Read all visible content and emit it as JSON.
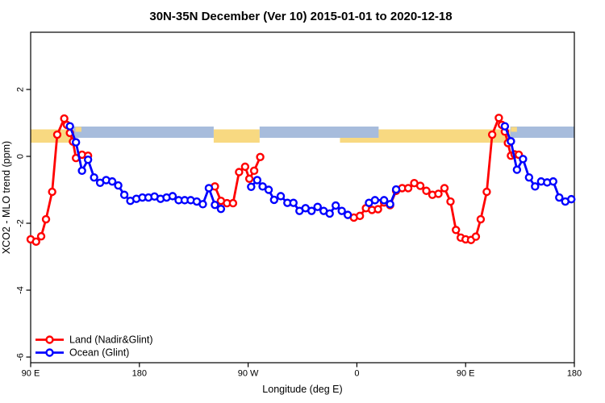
{
  "title": "30N-35N December (Ver 10)   2015-01-01 to 2020-12-18",
  "axes": {
    "x": {
      "label": "Longitude (deg E)",
      "range": [
        90,
        540
      ],
      "ticks": [
        {
          "lon": 90,
          "label": "90 E"
        },
        {
          "lon": 180,
          "label": "180"
        },
        {
          "lon": 270,
          "label": "90 W"
        },
        {
          "lon": 360,
          "label": "0"
        },
        {
          "lon": 450,
          "label": "90 E"
        },
        {
          "lon": 540,
          "label": "180"
        }
      ]
    },
    "y": {
      "label": "XCO2 - MLO trend (ppm)",
      "range": [
        -6.17,
        3.71
      ],
      "ticks": [
        {
          "v": 2,
          "label": "2"
        },
        {
          "v": 0,
          "label": "0"
        },
        {
          "v": -2,
          "label": "-2"
        },
        {
          "v": -4,
          "label": "-4"
        },
        {
          "v": -6,
          "label": "-6"
        }
      ]
    }
  },
  "legend": [
    {
      "label": "Land (Nadir&Glint)",
      "color": "#ff0000"
    },
    {
      "label": "Ocean (Glint)",
      "color": "#0000ff"
    }
  ],
  "colors": {
    "land_series": "#ff0000",
    "ocean_series": "#0000ff",
    "band_land": "#f8d981",
    "band_ocean": "#a7bcdc",
    "axis": "#000000",
    "marker_fill": "#ffffff"
  },
  "surface_band": {
    "band_value_range_ppm": [
      0.41,
      0.89
    ],
    "ocean_segments_lon": [
      [
        125.5,
        241.5
      ],
      [
        279.5,
        378
      ],
      [
        487,
        540
      ]
    ],
    "land_segments_lon": [
      [
        90,
        125.5
      ],
      [
        241.5,
        279.5
      ],
      [
        346,
        487
      ]
    ],
    "island_specks_lon": [
      [
        127,
        132
      ],
      [
        487.5,
        492.5
      ]
    ]
  },
  "chart_data": {
    "type": "line",
    "title": "30N-35N December (Ver 10)   2015-01-01 to 2020-12-18",
    "xlabel": "Longitude (deg E)",
    "ylabel": "XCO2 - MLO trend (ppm)",
    "xlim": [
      90,
      540
    ],
    "ylim": [
      -6.17,
      3.71
    ],
    "grid": false,
    "legend_position": "bottom-left",
    "marker": "open-circle",
    "series": [
      {
        "name": "Land (Nadir&Glint)",
        "color": "#ff0000",
        "segments": [
          [
            [
              90,
              -2.48
            ],
            [
              94.5,
              -2.55
            ],
            [
              98.7,
              -2.39
            ],
            [
              102.7,
              -1.88
            ],
            [
              107.8,
              -1.06
            ],
            [
              112,
              0.65
            ],
            [
              117.8,
              1.13
            ],
            [
              120,
              0.94
            ],
            [
              122.5,
              0.7
            ],
            [
              125,
              0.44
            ],
            [
              127.5,
              -0.05
            ],
            [
              132.5,
              0.05
            ],
            [
              137.5,
              0.02
            ]
          ],
          [
            [
              242.5,
              -0.9
            ],
            [
              247.5,
              -1.33
            ],
            [
              252.5,
              -1.4
            ],
            [
              257.5,
              -1.4
            ],
            [
              262.5,
              -0.47
            ],
            [
              267.5,
              -0.31
            ],
            [
              271,
              -0.67
            ],
            [
              275,
              -0.43
            ],
            [
              280,
              -0.02
            ]
          ],
          [
            [
              357.5,
              -1.83
            ],
            [
              362.5,
              -1.78
            ],
            [
              367.5,
              -1.55
            ],
            [
              372.5,
              -1.6
            ],
            [
              377.5,
              -1.58
            ],
            [
              382.5,
              -1.38
            ],
            [
              387.5,
              -1.46
            ],
            [
              392.5,
              -1.03
            ],
            [
              397.5,
              -0.95
            ],
            [
              402.5,
              -0.95
            ],
            [
              407.5,
              -0.8
            ],
            [
              412.5,
              -0.88
            ],
            [
              417.5,
              -1.03
            ],
            [
              422.5,
              -1.15
            ],
            [
              427.5,
              -1.12
            ],
            [
              432.5,
              -0.95
            ],
            [
              437.5,
              -1.35
            ],
            [
              442,
              -2.2
            ],
            [
              446,
              -2.43
            ],
            [
              450,
              -2.48
            ],
            [
              454.5,
              -2.5
            ],
            [
              458.5,
              -2.4
            ],
            [
              462.5,
              -1.88
            ],
            [
              467.5,
              -1.06
            ],
            [
              472,
              0.65
            ],
            [
              477.5,
              1.15
            ],
            [
              480,
              0.94
            ],
            [
              482.5,
              0.74
            ],
            [
              485,
              0.4
            ],
            [
              487.5,
              0.02
            ],
            [
              490.5,
              0.06
            ],
            [
              494,
              0.05
            ]
          ]
        ]
      },
      {
        "name": "Ocean (Glint)",
        "color": "#0000ff",
        "segments": [
          [
            [
              122.5,
              0.9
            ],
            [
              127.5,
              0.42
            ],
            [
              132.5,
              -0.43
            ],
            [
              137.5,
              -0.1
            ],
            [
              142.5,
              -0.63
            ],
            [
              147.5,
              -0.79
            ],
            [
              152.5,
              -0.71
            ],
            [
              157.5,
              -0.75
            ],
            [
              162.5,
              -0.87
            ],
            [
              167.5,
              -1.15
            ],
            [
              172.5,
              -1.33
            ],
            [
              177.5,
              -1.27
            ],
            [
              182.5,
              -1.23
            ],
            [
              187.5,
              -1.23
            ],
            [
              192.5,
              -1.2
            ],
            [
              197.5,
              -1.27
            ],
            [
              202.5,
              -1.23
            ],
            [
              207.5,
              -1.19
            ],
            [
              212.5,
              -1.31
            ],
            [
              217.5,
              -1.31
            ],
            [
              222.5,
              -1.31
            ],
            [
              227.5,
              -1.35
            ],
            [
              232.5,
              -1.43
            ],
            [
              237.5,
              -0.95
            ],
            [
              242.5,
              -1.45
            ],
            [
              247.5,
              -1.57
            ]
          ],
          [
            [
              272.5,
              -0.91
            ],
            [
              277.5,
              -0.71
            ],
            [
              282,
              -0.9
            ],
            [
              287,
              -1.0
            ],
            [
              291.5,
              -1.3
            ],
            [
              297,
              -1.19
            ],
            [
              302.5,
              -1.39
            ],
            [
              307.5,
              -1.39
            ],
            [
              312.5,
              -1.63
            ],
            [
              317.5,
              -1.55
            ],
            [
              322.5,
              -1.63
            ],
            [
              327.5,
              -1.51
            ],
            [
              332.5,
              -1.63
            ],
            [
              337.5,
              -1.71
            ],
            [
              342.5,
              -1.47
            ],
            [
              347.5,
              -1.63
            ],
            [
              352.5,
              -1.75
            ]
          ],
          [
            [
              370,
              -1.39
            ],
            [
              375,
              -1.31
            ],
            [
              382.5,
              -1.31
            ],
            [
              387.5,
              -1.43
            ],
            [
              392.5,
              -0.99
            ]
          ],
          [
            [
              482.5,
              0.9
            ],
            [
              487.5,
              0.45
            ],
            [
              492.5,
              -0.4
            ],
            [
              497.5,
              -0.08
            ],
            [
              502.5,
              -0.63
            ],
            [
              507.5,
              -0.9
            ],
            [
              512.5,
              -0.75
            ],
            [
              517.5,
              -0.78
            ],
            [
              522.5,
              -0.75
            ],
            [
              527.5,
              -1.23
            ],
            [
              532.5,
              -1.35
            ],
            [
              537.5,
              -1.28
            ]
          ]
        ]
      }
    ]
  }
}
